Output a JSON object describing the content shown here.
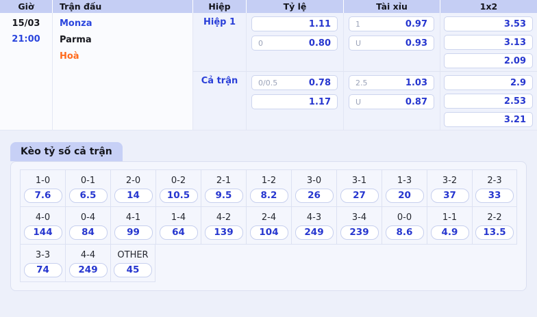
{
  "colors": {
    "page_bg": "#edf0fa",
    "header_bg": "#c5cef4",
    "tab_bg": "#c7d0f6",
    "card_bg": "#f4f6fd",
    "accent_blue": "#2636cf",
    "link_blue": "#2a45dd",
    "draw_orange": "#ff6b1c",
    "label_gray": "#9aa2b8",
    "border": "#dce1f2"
  },
  "match_table": {
    "headers": [
      "Giờ",
      "Trận đấu",
      "Hiệp",
      "Tỷ lệ",
      "Tài xỉu",
      "1x2"
    ],
    "date": "15/03",
    "time": "21:00",
    "home_team": "Monza",
    "away_team": "Parma",
    "draw_label": "Hoà",
    "sections": [
      {
        "label": "Hiệp 1",
        "handicap": [
          {
            "label": "",
            "odds": "1.11"
          },
          {
            "label": "0",
            "odds": "0.80"
          }
        ],
        "over_under": [
          {
            "label": "1",
            "odds": "0.97"
          },
          {
            "label": "U",
            "odds": "0.93"
          }
        ],
        "one_x_two": [
          "3.53",
          "3.13",
          "2.09"
        ]
      },
      {
        "label": "Cả trận",
        "handicap": [
          {
            "label": "0/0.5",
            "odds": "0.78"
          },
          {
            "label": "",
            "odds": "1.17"
          }
        ],
        "over_under": [
          {
            "label": "2.5",
            "odds": "1.03"
          },
          {
            "label": "U",
            "odds": "0.87"
          }
        ],
        "one_x_two": [
          "2.9",
          "2.53",
          "3.21"
        ]
      }
    ]
  },
  "score_section": {
    "tab_label": "Kèo tỷ số cả trận",
    "rows": [
      [
        {
          "score": "1-0",
          "odds": "7.6"
        },
        {
          "score": "0-1",
          "odds": "6.5"
        },
        {
          "score": "2-0",
          "odds": "14"
        },
        {
          "score": "0-2",
          "odds": "10.5"
        },
        {
          "score": "2-1",
          "odds": "9.5"
        },
        {
          "score": "1-2",
          "odds": "8.2"
        },
        {
          "score": "3-0",
          "odds": "26"
        },
        {
          "score": "3-1",
          "odds": "27"
        },
        {
          "score": "1-3",
          "odds": "20"
        },
        {
          "score": "3-2",
          "odds": "37"
        },
        {
          "score": "2-3",
          "odds": "33"
        }
      ],
      [
        {
          "score": "4-0",
          "odds": "144"
        },
        {
          "score": "0-4",
          "odds": "84"
        },
        {
          "score": "4-1",
          "odds": "99"
        },
        {
          "score": "1-4",
          "odds": "64"
        },
        {
          "score": "4-2",
          "odds": "139"
        },
        {
          "score": "2-4",
          "odds": "104"
        },
        {
          "score": "4-3",
          "odds": "249"
        },
        {
          "score": "3-4",
          "odds": "239"
        },
        {
          "score": "0-0",
          "odds": "8.6"
        },
        {
          "score": "1-1",
          "odds": "4.9"
        },
        {
          "score": "2-2",
          "odds": "13.5"
        }
      ],
      [
        {
          "score": "3-3",
          "odds": "74"
        },
        {
          "score": "4-4",
          "odds": "249"
        },
        {
          "score": "OTHER",
          "odds": "45"
        }
      ]
    ]
  }
}
